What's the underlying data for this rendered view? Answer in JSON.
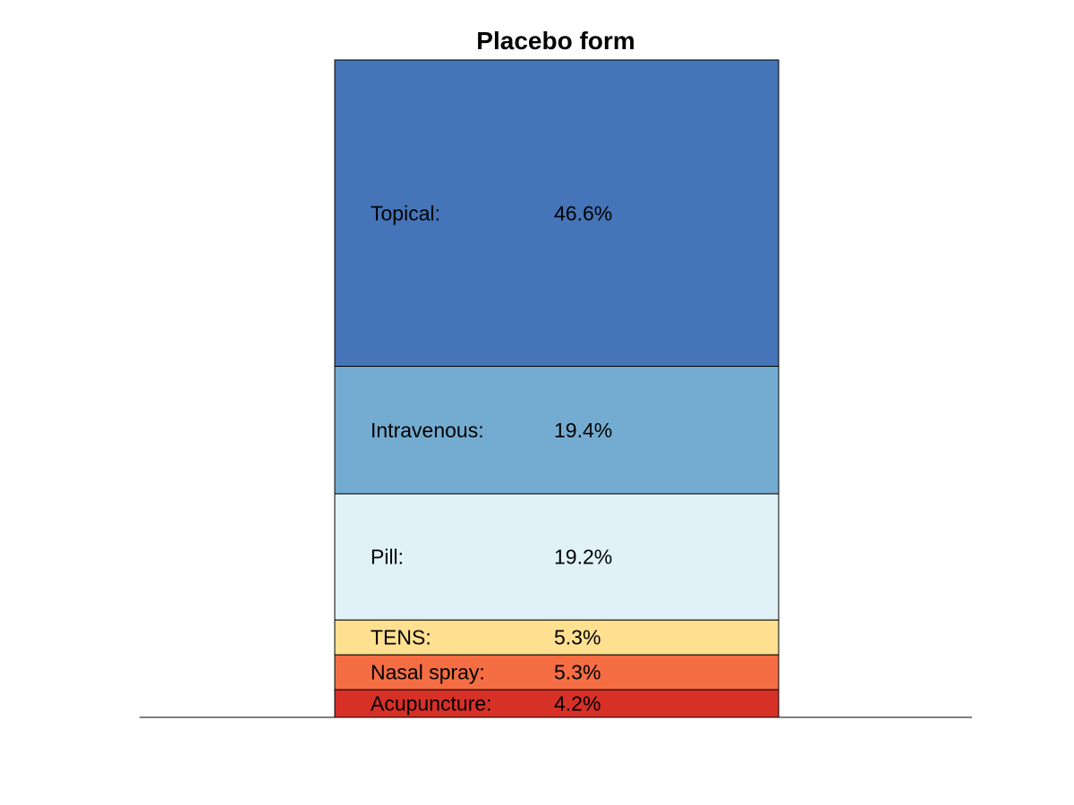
{
  "chart_data": {
    "type": "bar",
    "subtype": "stacked-100-percent",
    "title": "Placebo form",
    "ylim": [
      0,
      100
    ],
    "grid": false,
    "legend": "none",
    "segments": [
      {
        "label": "Topical:",
        "value": 46.6,
        "value_label": "46.6%",
        "color": "#4575b8"
      },
      {
        "label": "Intravenous:",
        "value": 19.4,
        "value_label": "19.4%",
        "color": "#74acd1"
      },
      {
        "label": "Pill:",
        "value": 19.2,
        "value_label": "19.2%",
        "color": "#e0f2f8"
      },
      {
        "label": "TENS:",
        "value": 5.3,
        "value_label": "5.3%",
        "color": "#fee090"
      },
      {
        "label": "Nasal spray:",
        "value": 5.3,
        "value_label": "5.3%",
        "color": "#f46d43"
      },
      {
        "label": "Acupuncture:",
        "value": 4.2,
        "value_label": "4.2%",
        "color": "#d73027"
      }
    ]
  }
}
